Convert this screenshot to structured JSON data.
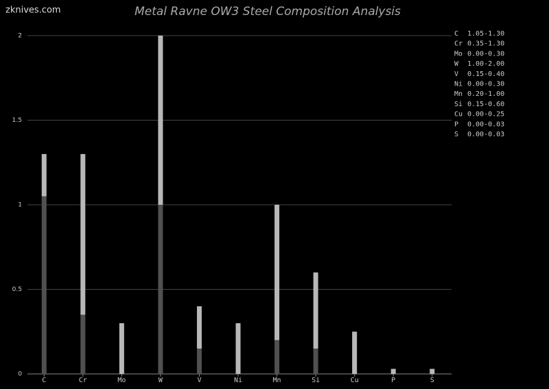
{
  "watermark": "zknives.com",
  "chart_data": {
    "type": "range-bar",
    "title": "Metal Ravne OW3 Steel Composition Analysis",
    "categories": [
      "C",
      "Cr",
      "Mo",
      "W",
      "V",
      "Ni",
      "Mn",
      "Si",
      "Cu",
      "P",
      "S"
    ],
    "min": [
      1.05,
      0.35,
      0.0,
      1.0,
      0.15,
      0.0,
      0.2,
      0.15,
      0.0,
      0.0,
      0.0
    ],
    "max": [
      1.3,
      1.3,
      0.3,
      2.0,
      0.4,
      0.3,
      1.0,
      0.6,
      0.25,
      0.03,
      0.03
    ],
    "value_labels": [
      "1.05-1.30",
      "0.35-1.30",
      "0.00-0.30",
      "1.00-2.00",
      "0.15-0.40",
      "0.00-0.30",
      "0.20-1.00",
      "0.15-0.60",
      "0.00-0.25",
      "0.00-0.03",
      "0.00-0.03"
    ],
    "min_color": "#505050",
    "max_color": "#b8b8b8",
    "ylim": [
      0,
      2
    ],
    "yticks": [
      0,
      0.5,
      1,
      1.5,
      2
    ],
    "grid": true
  }
}
